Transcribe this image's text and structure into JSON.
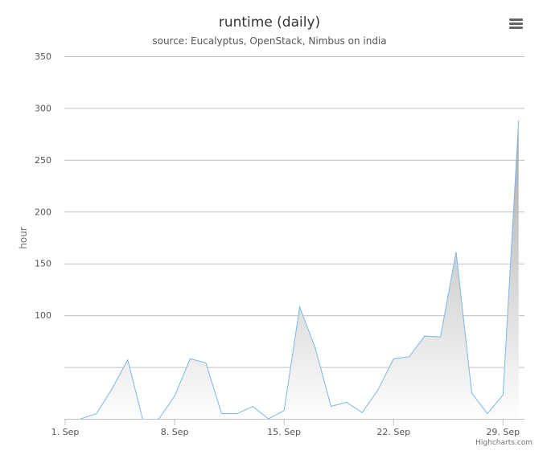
{
  "chart_data": {
    "type": "area",
    "title": "runtime (daily)",
    "subtitle": "source: Eucalyptus, OpenStack, Nimbus on india",
    "ylabel": "hour",
    "xlabel": "",
    "ylim": [
      0,
      350
    ],
    "yticks": [
      {
        "value": 0,
        "label": ""
      },
      {
        "value": 50,
        "label": ""
      },
      {
        "value": 100,
        "label": "100"
      },
      {
        "value": 150,
        "label": "150"
      },
      {
        "value": 200,
        "label": "200"
      },
      {
        "value": 250,
        "label": "250"
      },
      {
        "value": 300,
        "label": "300"
      },
      {
        "value": 350,
        "label": "350"
      }
    ],
    "xticks": [
      "1. Sep",
      "8. Sep",
      "15. Sep",
      "22. Sep",
      "29. Sep"
    ],
    "x": [
      "2013-09-01",
      "2013-09-02",
      "2013-09-03",
      "2013-09-04",
      "2013-09-05",
      "2013-09-06",
      "2013-09-07",
      "2013-09-08",
      "2013-09-09",
      "2013-09-10",
      "2013-09-11",
      "2013-09-12",
      "2013-09-13",
      "2013-09-14",
      "2013-09-15",
      "2013-09-16",
      "2013-09-17",
      "2013-09-18",
      "2013-09-19",
      "2013-09-20",
      "2013-09-21",
      "2013-09-22",
      "2013-09-23",
      "2013-09-24",
      "2013-09-25",
      "2013-09-26",
      "2013-09-27",
      "2013-09-28",
      "2013-09-29",
      "2013-09-30"
    ],
    "series": [
      {
        "values": [
          -5,
          0,
          5,
          29,
          57,
          -3,
          0,
          22,
          58,
          54,
          5,
          5,
          12,
          0,
          8,
          108,
          68,
          12,
          16,
          6,
          28,
          58,
          60,
          80,
          79,
          161,
          25,
          5,
          23,
          288
        ]
      }
    ],
    "grid": true,
    "legend": "none",
    "colors": {
      "line": "#7cb5ec",
      "fill_top": "#a8a8a8",
      "fill_bottom": "#ffffff",
      "grid": "#c0c0c0"
    }
  },
  "ui": {
    "menu_icon": "hamburger-menu-icon",
    "credits": "Highcharts.com"
  }
}
